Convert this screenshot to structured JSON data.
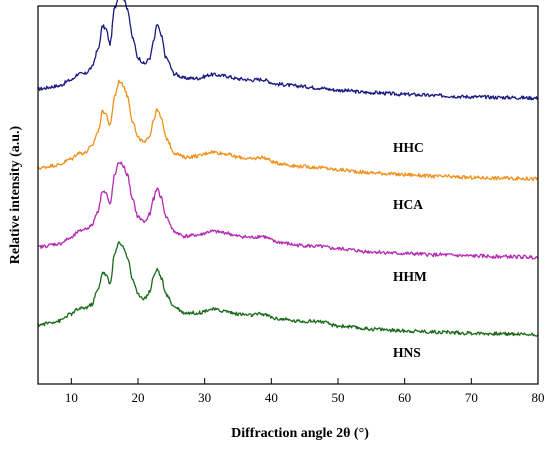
{
  "chart_data": {
    "type": "line",
    "xlabel": "Diffraction angle 2θ (°)",
    "ylabel": "Relative intensity (a.u.)",
    "xlim": [
      5,
      80
    ],
    "xticks": [
      "10",
      "20",
      "30",
      "40",
      "50",
      "60",
      "70",
      "80"
    ],
    "y_ticks_shown": false,
    "grid": false,
    "offset_stacked": true,
    "series": [
      {
        "name": "HHC",
        "color": "#1a1a80",
        "baseline": 3.0,
        "points": [
          [
            5,
            0.2
          ],
          [
            8,
            0.25
          ],
          [
            10,
            0.35
          ],
          [
            11,
            0.45
          ],
          [
            12,
            0.45
          ],
          [
            13,
            0.55
          ],
          [
            14,
            0.85
          ],
          [
            14.7,
            1.25
          ],
          [
            15.2,
            1.2
          ],
          [
            15.8,
            0.95
          ],
          [
            16.5,
            1.55
          ],
          [
            17.2,
            1.8
          ],
          [
            17.8,
            1.72
          ],
          [
            18.4,
            1.55
          ],
          [
            19.2,
            1.05
          ],
          [
            20,
            0.72
          ],
          [
            21,
            0.62
          ],
          [
            21.8,
            0.72
          ],
          [
            22.3,
            0.98
          ],
          [
            22.9,
            1.28
          ],
          [
            23.5,
            1.08
          ],
          [
            24.2,
            0.72
          ],
          [
            25.5,
            0.45
          ],
          [
            27,
            0.38
          ],
          [
            29,
            0.38
          ],
          [
            31,
            0.44
          ],
          [
            33,
            0.42
          ],
          [
            35,
            0.37
          ],
          [
            37,
            0.35
          ],
          [
            38.5,
            0.36
          ],
          [
            41,
            0.28
          ],
          [
            44,
            0.25
          ],
          [
            47,
            0.22
          ],
          [
            50,
            0.18
          ],
          [
            55,
            0.14
          ],
          [
            60,
            0.11
          ],
          [
            65,
            0.09
          ],
          [
            70,
            0.07
          ],
          [
            75,
            0.06
          ],
          [
            80,
            0.05
          ]
        ]
      },
      {
        "name": "HCA",
        "color": "#f0901a",
        "baseline": 2.0,
        "points": [
          [
            5,
            0.2
          ],
          [
            8,
            0.25
          ],
          [
            10,
            0.35
          ],
          [
            11,
            0.45
          ],
          [
            12,
            0.45
          ],
          [
            13,
            0.55
          ],
          [
            14,
            0.8
          ],
          [
            14.7,
            1.15
          ],
          [
            15.2,
            1.1
          ],
          [
            15.8,
            0.9
          ],
          [
            16.5,
            1.4
          ],
          [
            17.2,
            1.65
          ],
          [
            17.8,
            1.58
          ],
          [
            18.4,
            1.4
          ],
          [
            19.2,
            0.98
          ],
          [
            20,
            0.7
          ],
          [
            21,
            0.62
          ],
          [
            21.8,
            0.75
          ],
          [
            22.3,
            1.0
          ],
          [
            22.9,
            1.18
          ],
          [
            23.5,
            1.02
          ],
          [
            24.2,
            0.7
          ],
          [
            25.5,
            0.45
          ],
          [
            27,
            0.38
          ],
          [
            29,
            0.4
          ],
          [
            31,
            0.47
          ],
          [
            33,
            0.44
          ],
          [
            35,
            0.38
          ],
          [
            37,
            0.35
          ],
          [
            38.5,
            0.38
          ],
          [
            41,
            0.28
          ],
          [
            44,
            0.23
          ],
          [
            47,
            0.21
          ],
          [
            50,
            0.17
          ],
          [
            55,
            0.12
          ],
          [
            60,
            0.09
          ],
          [
            65,
            0.06
          ],
          [
            70,
            0.04
          ],
          [
            75,
            0.03
          ],
          [
            80,
            0.02
          ]
        ]
      },
      {
        "name": "HHM",
        "color": "#b42ab4",
        "baseline": 1.0,
        "points": [
          [
            5,
            0.2
          ],
          [
            8,
            0.25
          ],
          [
            10,
            0.35
          ],
          [
            11,
            0.45
          ],
          [
            12,
            0.5
          ],
          [
            13,
            0.55
          ],
          [
            14,
            0.8
          ],
          [
            14.7,
            1.15
          ],
          [
            15.2,
            1.1
          ],
          [
            15.8,
            0.9
          ],
          [
            16.5,
            1.4
          ],
          [
            17.2,
            1.62
          ],
          [
            17.8,
            1.55
          ],
          [
            18.4,
            1.4
          ],
          [
            19.2,
            0.98
          ],
          [
            20,
            0.7
          ],
          [
            21,
            0.62
          ],
          [
            21.8,
            0.75
          ],
          [
            22.3,
            1.0
          ],
          [
            22.9,
            1.18
          ],
          [
            23.5,
            1.02
          ],
          [
            24.2,
            0.7
          ],
          [
            25.5,
            0.45
          ],
          [
            27,
            0.38
          ],
          [
            29,
            0.4
          ],
          [
            31,
            0.46
          ],
          [
            33,
            0.44
          ],
          [
            35,
            0.38
          ],
          [
            37,
            0.36
          ],
          [
            38.5,
            0.38
          ],
          [
            41,
            0.28
          ],
          [
            44,
            0.23
          ],
          [
            47,
            0.21
          ],
          [
            50,
            0.17
          ],
          [
            55,
            0.12
          ],
          [
            60,
            0.09
          ],
          [
            65,
            0.07
          ],
          [
            70,
            0.05
          ],
          [
            75,
            0.04
          ],
          [
            80,
            0.03
          ]
        ]
      },
      {
        "name": "HNS",
        "color": "#1a6b1a",
        "baseline": 0.0,
        "points": [
          [
            5,
            0.22
          ],
          [
            8,
            0.28
          ],
          [
            10,
            0.4
          ],
          [
            11,
            0.48
          ],
          [
            12,
            0.5
          ],
          [
            13,
            0.55
          ],
          [
            14,
            0.8
          ],
          [
            14.7,
            1.1
          ],
          [
            15.2,
            1.05
          ],
          [
            15.8,
            0.9
          ],
          [
            16.5,
            1.4
          ],
          [
            17.2,
            1.6
          ],
          [
            17.8,
            1.52
          ],
          [
            18.4,
            1.35
          ],
          [
            19.2,
            0.98
          ],
          [
            20,
            0.72
          ],
          [
            21,
            0.66
          ],
          [
            21.8,
            0.78
          ],
          [
            22.3,
            1.02
          ],
          [
            22.9,
            1.15
          ],
          [
            23.5,
            1.0
          ],
          [
            24.2,
            0.72
          ],
          [
            25.5,
            0.52
          ],
          [
            27,
            0.42
          ],
          [
            29,
            0.42
          ],
          [
            31,
            0.48
          ],
          [
            33,
            0.45
          ],
          [
            35,
            0.4
          ],
          [
            37,
            0.38
          ],
          [
            38.5,
            0.4
          ],
          [
            41,
            0.32
          ],
          [
            44,
            0.28
          ],
          [
            47,
            0.28
          ],
          [
            50,
            0.2
          ],
          [
            55,
            0.15
          ],
          [
            60,
            0.12
          ],
          [
            65,
            0.1
          ],
          [
            70,
            0.08
          ],
          [
            75,
            0.07
          ],
          [
            80,
            0.06
          ]
        ]
      }
    ]
  }
}
